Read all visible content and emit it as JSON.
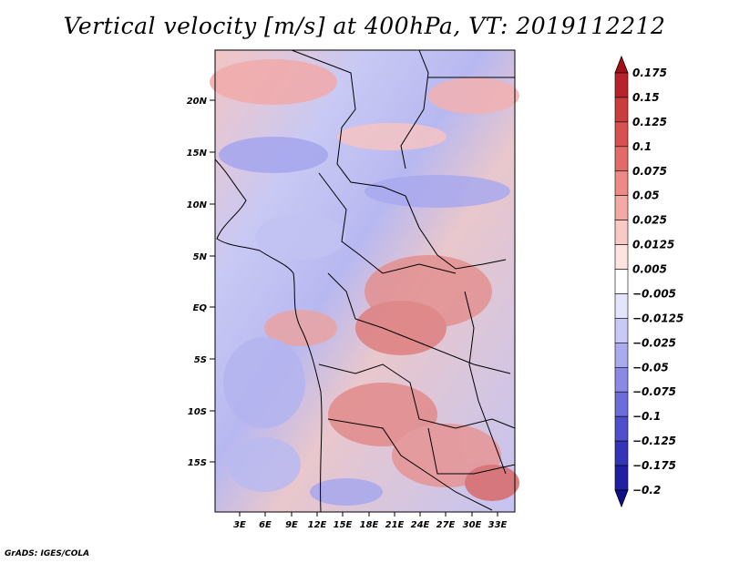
{
  "title": "Vertical velocity [m/s] at 400hPa, VT: 2019112212",
  "footer": "GrADS: IGES/COLA",
  "map": {
    "lat_labels": [
      "20N",
      "15N",
      "10N",
      "5N",
      "EQ",
      "5S",
      "10S",
      "15S"
    ],
    "lon_labels": [
      "3E",
      "6E",
      "9E",
      "12E",
      "15E",
      "18E",
      "21E",
      "24E",
      "27E",
      "30E",
      "33E"
    ]
  },
  "colorbar": {
    "labels": [
      "0.175",
      "0.15",
      "0.125",
      "0.1",
      "0.075",
      "0.05",
      "0.025",
      "0.0125",
      "0.005",
      "−0.005",
      "−0.0125",
      "−0.025",
      "−0.05",
      "−0.075",
      "−0.1",
      "−0.125",
      "−0.175",
      "−0.2"
    ],
    "colors": [
      "#a50f15",
      "#b8222a",
      "#cb3c3c",
      "#d8504f",
      "#e36b67",
      "#ec8b86",
      "#f4aaa4",
      "#f9c9c4",
      "#fde4e1",
      "#ffffff",
      "#e4e4fb",
      "#c9c9f5",
      "#aaaaee",
      "#8a8ae5",
      "#6c6cda",
      "#4f4fcb",
      "#3434b9",
      "#1f1fa3",
      "#10108a"
    ]
  }
}
